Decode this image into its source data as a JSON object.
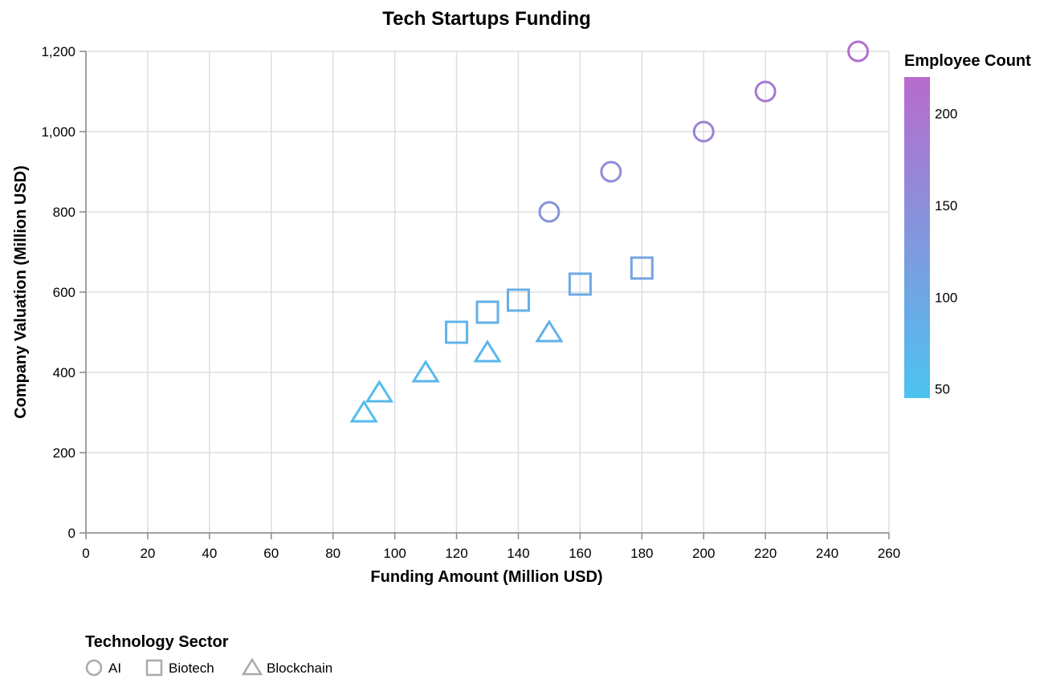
{
  "chart_data": {
    "type": "scatter",
    "title": "Tech Startups Funding",
    "xlabel": "Funding Amount (Million USD)",
    "ylabel": "Company Valuation (Million USD)",
    "xlim": [
      0,
      260
    ],
    "ylim": [
      0,
      1200
    ],
    "x_ticks": [
      0,
      20,
      40,
      60,
      80,
      100,
      120,
      140,
      160,
      180,
      200,
      220,
      240,
      260
    ],
    "y_ticks": [
      0,
      200,
      400,
      600,
      800,
      1000,
      1200
    ],
    "y_tick_labels": [
      "0",
      "200",
      "400",
      "600",
      "800",
      "1,000",
      "1,200"
    ],
    "grid": true,
    "color_legend": {
      "title": "Employee Count",
      "placement": "top-right",
      "domain": [
        45,
        220
      ],
      "ticks": [
        50,
        100,
        150,
        200
      ],
      "color_low": "#4cc3f0",
      "color_high": "#b86bcc"
    },
    "shape_legend": {
      "title": "Technology Sector",
      "placement": "bottom-left",
      "entries": [
        {
          "label": "AI",
          "shape": "circle"
        },
        {
          "label": "Biotech",
          "shape": "square"
        },
        {
          "label": "Blockchain",
          "shape": "triangle"
        }
      ]
    },
    "series": [
      {
        "name": "AI",
        "shape": "circle",
        "points": [
          {
            "x": 150,
            "y": 800,
            "employees": 140
          },
          {
            "x": 170,
            "y": 900,
            "employees": 155
          },
          {
            "x": 200,
            "y": 1000,
            "employees": 175
          },
          {
            "x": 220,
            "y": 1100,
            "employees": 190
          },
          {
            "x": 250,
            "y": 1200,
            "employees": 210
          }
        ]
      },
      {
        "name": "Biotech",
        "shape": "square",
        "points": [
          {
            "x": 120,
            "y": 500,
            "employees": 75
          },
          {
            "x": 130,
            "y": 550,
            "employees": 80
          },
          {
            "x": 140,
            "y": 580,
            "employees": 85
          },
          {
            "x": 160,
            "y": 620,
            "employees": 95
          },
          {
            "x": 180,
            "y": 660,
            "employees": 105
          }
        ]
      },
      {
        "name": "Blockchain",
        "shape": "triangle",
        "points": [
          {
            "x": 90,
            "y": 300,
            "employees": 55
          },
          {
            "x": 95,
            "y": 350,
            "employees": 60
          },
          {
            "x": 110,
            "y": 400,
            "employees": 65
          },
          {
            "x": 130,
            "y": 450,
            "employees": 70
          },
          {
            "x": 150,
            "y": 500,
            "employees": 80
          }
        ]
      }
    ]
  }
}
